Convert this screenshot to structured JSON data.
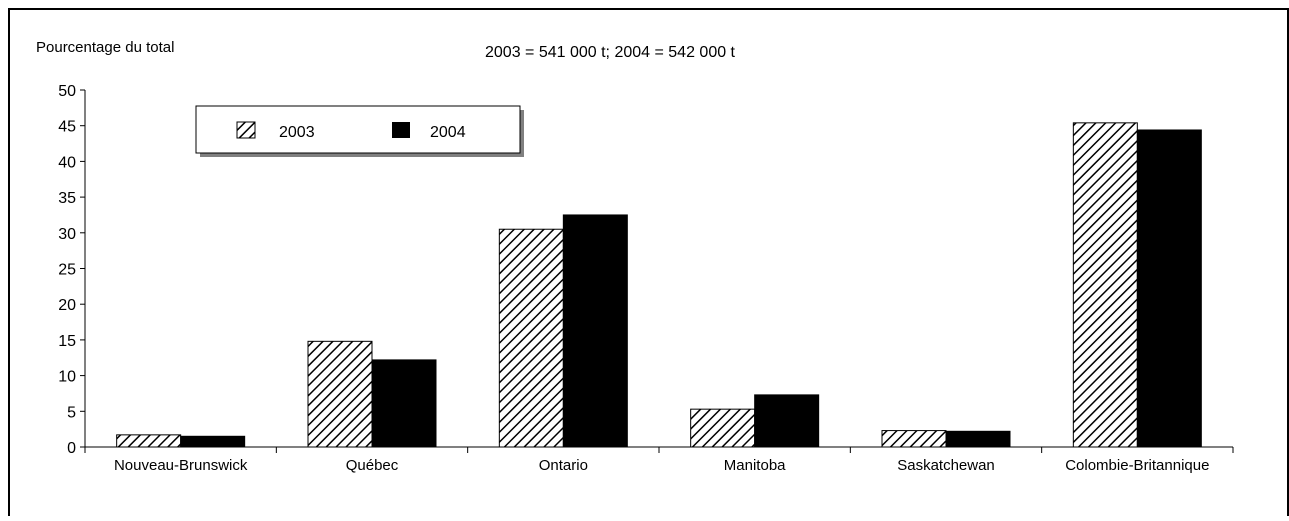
{
  "chart_data": {
    "type": "bar",
    "ylabel": "Pourcentage du total",
    "subtitle": "2003 = 541 000 t;  2004 = 542 000 t",
    "categories": [
      "Nouveau-Brunswick",
      "Québec",
      "Ontario",
      "Manitoba",
      "Saskatchewan",
      "Colombie-Britannique"
    ],
    "series": [
      {
        "name": "2003",
        "values": [
          1.7,
          14.8,
          30.5,
          5.3,
          2.3,
          45.4
        ],
        "fill": "hatched",
        "color": "#000000"
      },
      {
        "name": "2004",
        "values": [
          1.5,
          12.2,
          32.5,
          7.3,
          2.2,
          44.4
        ],
        "fill": "solid",
        "color": "#000000"
      }
    ],
    "ylim": [
      0,
      50
    ],
    "yticks": [
      0,
      5,
      10,
      15,
      20,
      25,
      30,
      35,
      40,
      45,
      50
    ],
    "grid": false,
    "legend_position": "top-left"
  }
}
